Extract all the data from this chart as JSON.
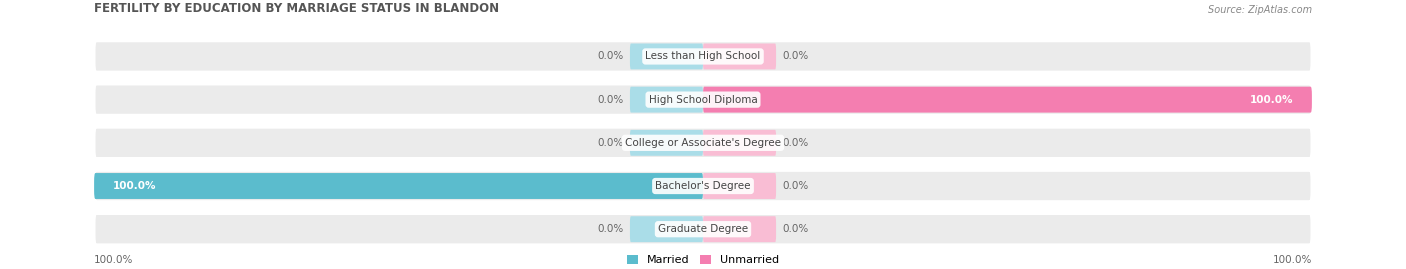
{
  "title": "FERTILITY BY EDUCATION BY MARRIAGE STATUS IN BLANDON",
  "source": "Source: ZipAtlas.com",
  "categories": [
    "Less than High School",
    "High School Diploma",
    "College or Associate's Degree",
    "Bachelor's Degree",
    "Graduate Degree"
  ],
  "married_values": [
    0.0,
    0.0,
    0.0,
    100.0,
    0.0
  ],
  "unmarried_values": [
    0.0,
    100.0,
    0.0,
    0.0,
    0.0
  ],
  "married_color": "#5bbccd",
  "unmarried_color": "#f47eb0",
  "married_light_color": "#aadde8",
  "unmarried_light_color": "#f9bdd4",
  "row_bg_color": "#ebebeb",
  "title_color": "#555555",
  "source_color": "#888888",
  "value_label_color": "#666666",
  "center_label_color": "#444444",
  "max_val": 100.0,
  "figsize": [
    14.06,
    2.69
  ],
  "dpi": 100
}
